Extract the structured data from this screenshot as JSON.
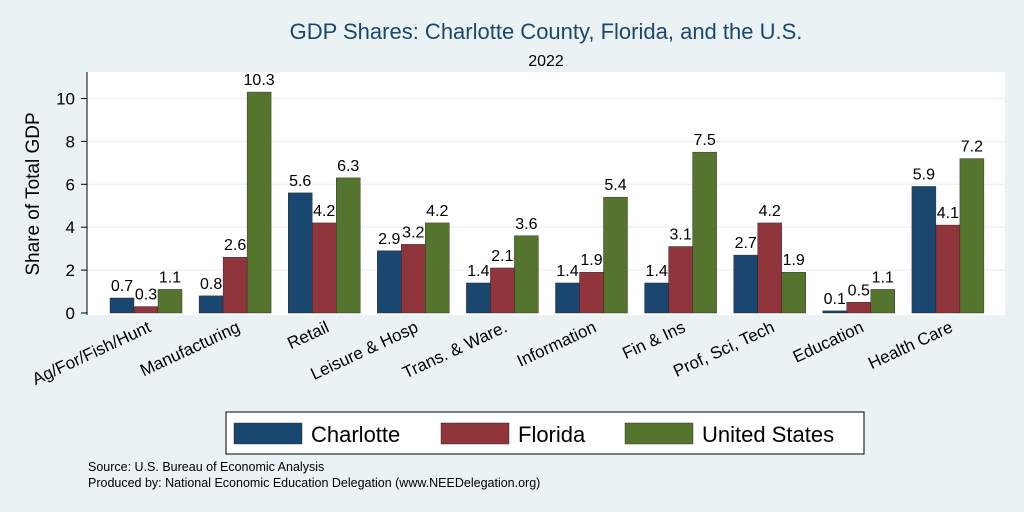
{
  "chart_data": {
    "type": "bar",
    "title": "GDP Shares: Charlotte County, Florida, and the U.S.",
    "subtitle": "2022",
    "ylabel": "Share of Total GDP",
    "xlabel": "",
    "ylim": [
      0,
      11
    ],
    "yticks": [
      0,
      2,
      4,
      6,
      8,
      10
    ],
    "grid": true,
    "legend_position": "bottom",
    "categories": [
      "Ag/For/Fish/Hunt",
      "Manufacturing",
      "Retail",
      "Leisure & Hosp",
      "Trans. & Ware.",
      "Information",
      "Fin & Ins",
      "Prof, Sci, Tech",
      "Education",
      "Health Care"
    ],
    "series": [
      {
        "name": "Charlotte",
        "color": "#1a476f",
        "values": [
          0.7,
          0.8,
          5.6,
          2.9,
          1.4,
          1.4,
          1.4,
          2.7,
          0.1,
          5.9
        ]
      },
      {
        "name": "Florida",
        "color": "#90353b",
        "values": [
          0.3,
          2.6,
          4.2,
          3.2,
          2.1,
          1.9,
          3.1,
          4.2,
          0.5,
          4.1
        ]
      },
      {
        "name": "United States",
        "color": "#55752f",
        "values": [
          1.1,
          10.3,
          6.3,
          4.2,
          3.6,
          5.4,
          7.5,
          1.9,
          1.1,
          7.2
        ]
      }
    ]
  },
  "notes": {
    "source": "Source: U.S. Bureau of Economic Analysis",
    "produced": "Produced by: National Economic Education Delegation (www.NEEDelegation.org)"
  }
}
